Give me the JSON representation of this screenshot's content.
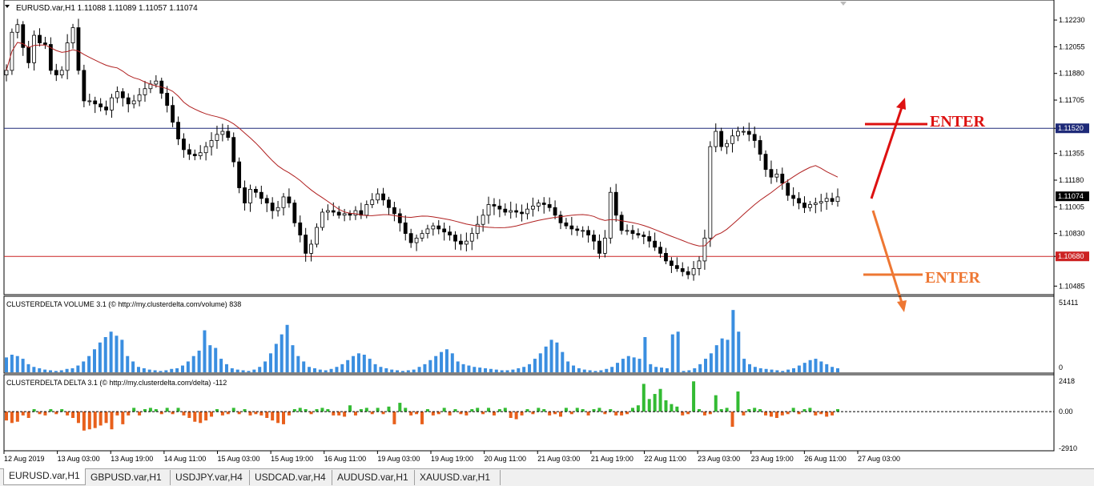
{
  "chart_data": [
    {
      "type": "candlestick",
      "title": "EURUSD.var,H1  1.11088 1.11089 1.11057 1.11074",
      "symbol": "EURUSD.var,H1",
      "ylim": [
        1.1045,
        1.1233
      ],
      "y_ticks": [
        {
          "value": 1.1223,
          "label": "1.12230"
        },
        {
          "value": 1.12055,
          "label": "1.12055"
        },
        {
          "value": 1.1188,
          "label": "1.11880"
        },
        {
          "value": 1.11705,
          "label": "1.11705"
        },
        {
          "value": 1.1152,
          "label": "1.11520"
        },
        {
          "value": 1.11355,
          "label": "1.11355"
        },
        {
          "value": 1.1118,
          "label": "1.11180"
        },
        {
          "value": 1.11074,
          "label": "1.11074"
        },
        {
          "value": 1.11005,
          "label": "1.11005"
        },
        {
          "value": 1.1083,
          "label": "1.10830"
        },
        {
          "value": 1.1068,
          "label": "1.10680"
        },
        {
          "value": 1.10485,
          "label": "1.10485"
        }
      ],
      "horizontal_lines": [
        {
          "value": 1.1152,
          "label": "1.11520",
          "color": "#1e2a78"
        },
        {
          "value": 1.1068,
          "label": "1.10680",
          "color": "#cc2222"
        }
      ],
      "current_price": {
        "value": 1.11074,
        "label": "1.11074"
      },
      "price_path": [
        1.119,
        1.1215,
        1.122,
        1.1205,
        1.1195,
        1.1213,
        1.1208,
        1.1207,
        1.119,
        1.1187,
        1.119,
        1.1208,
        1.1218,
        1.119,
        1.117,
        1.117,
        1.1168,
        1.1166,
        1.1164,
        1.1172,
        1.1176,
        1.1172,
        1.1168,
        1.117,
        1.1174,
        1.1178,
        1.1181,
        1.1183,
        1.1175,
        1.1167,
        1.1156,
        1.1145,
        1.1138,
        1.1135,
        1.1134,
        1.1136,
        1.114,
        1.1144,
        1.1148,
        1.115,
        1.1146,
        1.113,
        1.1113,
        1.1103,
        1.1112,
        1.111,
        1.1106,
        1.1103,
        1.1098,
        1.11,
        1.1107,
        1.1103,
        1.109,
        1.1082,
        1.107,
        1.1076,
        1.1087,
        1.1097,
        1.1098,
        1.1097,
        1.1095,
        1.1096,
        1.1095,
        1.1098,
        1.1095,
        1.1102,
        1.1105,
        1.1109,
        1.1105,
        1.11,
        1.1096,
        1.109,
        1.1083,
        1.1077,
        1.108,
        1.1083,
        1.1086,
        1.1088,
        1.1086,
        1.1084,
        1.1082,
        1.1078,
        1.1076,
        1.1078,
        1.1083,
        1.1089,
        1.1095,
        1.1102,
        1.1101,
        1.1099,
        1.1097,
        1.1098,
        1.1097,
        1.1096,
        1.1099,
        1.1101,
        1.1103,
        1.1102,
        1.11,
        1.1095,
        1.109,
        1.1088,
        1.1086,
        1.1085,
        1.1085,
        1.1082,
        1.1078,
        1.107,
        1.108,
        1.111,
        1.1095,
        1.1085,
        1.1085,
        1.1083,
        1.1082,
        1.1081,
        1.1078,
        1.1074,
        1.107,
        1.1065,
        1.1062,
        1.106,
        1.1058,
        1.1056,
        1.106,
        1.1065,
        1.108,
        1.114,
        1.115,
        1.114,
        1.1142,
        1.1147,
        1.115,
        1.115,
        1.1148,
        1.1144,
        1.1135,
        1.1125,
        1.112,
        1.1122,
        1.1116,
        1.1108,
        1.1106,
        1.1103,
        1.11,
        1.1102,
        1.1103,
        1.1104,
        1.1106,
        1.1104,
        1.1107
      ],
      "moving_average_color": "#b02020",
      "annotations": [
        {
          "text": "ENTER",
          "color": "#dd1111"
        },
        {
          "text": "ENTER",
          "color": "#ee7733"
        }
      ]
    },
    {
      "type": "bar",
      "title": "CLUSTERDELTA VOLUME 3.1 (© http://my.clusterdelta.com/volume) 838",
      "ylim": [
        0,
        51411
      ],
      "y_ticks": [
        {
          "value": 51411,
          "label": "51411"
        },
        {
          "value": 0,
          "label": "0"
        }
      ],
      "bar_color": "#3a8ee0",
      "values": [
        11000,
        13000,
        12000,
        10000,
        6000,
        4000,
        3000,
        2000,
        1500,
        1000,
        1500,
        2500,
        3000,
        5000,
        8000,
        12000,
        17000,
        22000,
        26000,
        30000,
        27000,
        24000,
        12000,
        8000,
        4000,
        3000,
        2000,
        1500,
        1000,
        1500,
        2500,
        3000,
        5000,
        8000,
        12000,
        16000,
        19000,
        20000,
        18000,
        10000,
        6000,
        3000,
        2000,
        1500,
        1000,
        2000,
        4000,
        8000,
        14000,
        21000,
        28000,
        35000,
        20000,
        12000,
        8000,
        4000,
        3000,
        2000,
        1500,
        2500,
        4000,
        6000,
        9000,
        12000,
        14000,
        13000,
        10000,
        6000,
        4000,
        3000,
        2000,
        1500,
        1000,
        1500,
        2000,
        4000,
        6000,
        9000,
        12000,
        15000,
        17000,
        14000,
        8000,
        6000,
        5000,
        4000,
        3500,
        3000,
        2500,
        2000,
        1500,
        1500,
        2000,
        3000,
        4000,
        6000,
        10000,
        14000,
        19000,
        24000,
        22000,
        15000,
        8000,
        5000,
        3000,
        2000,
        1500,
        1000,
        1500,
        2500,
        4000,
        7000,
        10000,
        12000,
        11000,
        10000,
        8000,
        6000,
        4000,
        3500,
        3000,
        2500,
        1500,
        1000,
        1500,
        3000,
        6000,
        10000,
        14000,
        20000,
        25000,
        30000,
        22000,
        14000,
        10000,
        6000,
        4000,
        3000,
        2500,
        2000,
        1500,
        1000,
        2000,
        3000,
        5000,
        7000,
        9000,
        10000,
        8000,
        6000,
        4000,
        3000
      ],
      "volume_spikes": [
        [
          36,
          31000
        ],
        [
          116,
          26000
        ],
        [
          121,
          28000
        ],
        [
          122,
          30000
        ],
        [
          131,
          24000
        ],
        [
          132,
          46000
        ],
        [
          133,
          30000
        ]
      ]
    },
    {
      "type": "bar",
      "title": "CLUSTERDELTA DELTA 3.1 (© http://my.clusterdelta.com/delta) -112",
      "ylim": [
        -2910,
        2418
      ],
      "y_ticks": [
        {
          "value": 2418,
          "label": "2418"
        },
        {
          "value": 0,
          "label": "0.00"
        },
        {
          "value": -2910,
          "label": "-2910"
        }
      ],
      "positive_color": "#33bb33",
      "negative_color": "#e8601c",
      "values": [
        -600,
        -900,
        -800,
        -300,
        -500,
        200,
        -200,
        -300,
        200,
        -200,
        200,
        -300,
        -500,
        -900,
        -1000,
        -1400,
        -1300,
        -1100,
        -900,
        -600,
        -300,
        200,
        -300,
        300,
        -300,
        200,
        300,
        200,
        -200,
        300,
        -200,
        300,
        -300,
        -500,
        -800,
        -900,
        -700,
        -400,
        200,
        -300,
        -200,
        300,
        -200,
        200,
        -300,
        -200,
        -300,
        -500,
        -700,
        -900,
        -1000,
        -300,
        200,
        300,
        200,
        -200,
        200,
        300,
        200,
        -300,
        -300,
        -400,
        500,
        -300,
        200,
        300,
        -200,
        300,
        -200,
        400,
        500,
        700,
        300,
        -300,
        -200,
        300,
        200,
        -300,
        -200,
        300,
        -300,
        200,
        -200,
        -300,
        200,
        300,
        -200,
        300,
        -300,
        200,
        300,
        -500,
        -600,
        -300,
        200,
        -200,
        300,
        200,
        -300,
        -200,
        -400,
        300,
        -200,
        300,
        200,
        -300,
        200,
        300,
        -200,
        200,
        -300,
        -300,
        -200,
        300,
        500,
        800,
        1000,
        1400,
        1200,
        900,
        600,
        400,
        -300,
        -200,
        300,
        200,
        -300,
        -200,
        -300,
        200,
        300,
        -200,
        500,
        -300,
        200,
        300,
        200,
        -300,
        -400,
        -500,
        -300,
        -200,
        300,
        -200,
        200,
        300,
        -300,
        -200,
        -400,
        -300,
        200
      ],
      "delta_spikes": [
        [
          0,
          -700
        ],
        [
          14,
          -1500
        ],
        [
          19,
          -1400
        ],
        [
          21,
          -1000
        ],
        [
          70,
          -1000
        ],
        [
          75,
          -1000
        ],
        [
          115,
          2200
        ],
        [
          118,
          1800
        ],
        [
          124,
          2400
        ],
        [
          128,
          1300
        ],
        [
          131,
          -1200
        ],
        [
          132,
          1600
        ]
      ],
      "x_tick_labels": [
        "12 Aug 2019",
        "13 Aug 03:00",
        "13 Aug 19:00",
        "14 Aug 11:00",
        "15 Aug 03:00",
        "15 Aug 19:00",
        "16 Aug 11:00",
        "19 Aug 03:00",
        "19 Aug 19:00",
        "20 Aug 11:00",
        "21 Aug 03:00",
        "21 Aug 19:00",
        "22 Aug 11:00",
        "23 Aug 03:00",
        "23 Aug 19:00",
        "26 Aug 11:00",
        "27 Aug 03:00"
      ]
    }
  ],
  "tabs": [
    {
      "label": "EURUSD.var,H1",
      "active": true
    },
    {
      "label": "GBPUSD.var,H1",
      "active": false
    },
    {
      "label": "USDJPY.var,H4",
      "active": false
    },
    {
      "label": "USDCAD.var,H4",
      "active": false
    },
    {
      "label": "AUDUSD.var,H1",
      "active": false
    },
    {
      "label": "XAUUSD.var,H1",
      "active": false
    }
  ]
}
